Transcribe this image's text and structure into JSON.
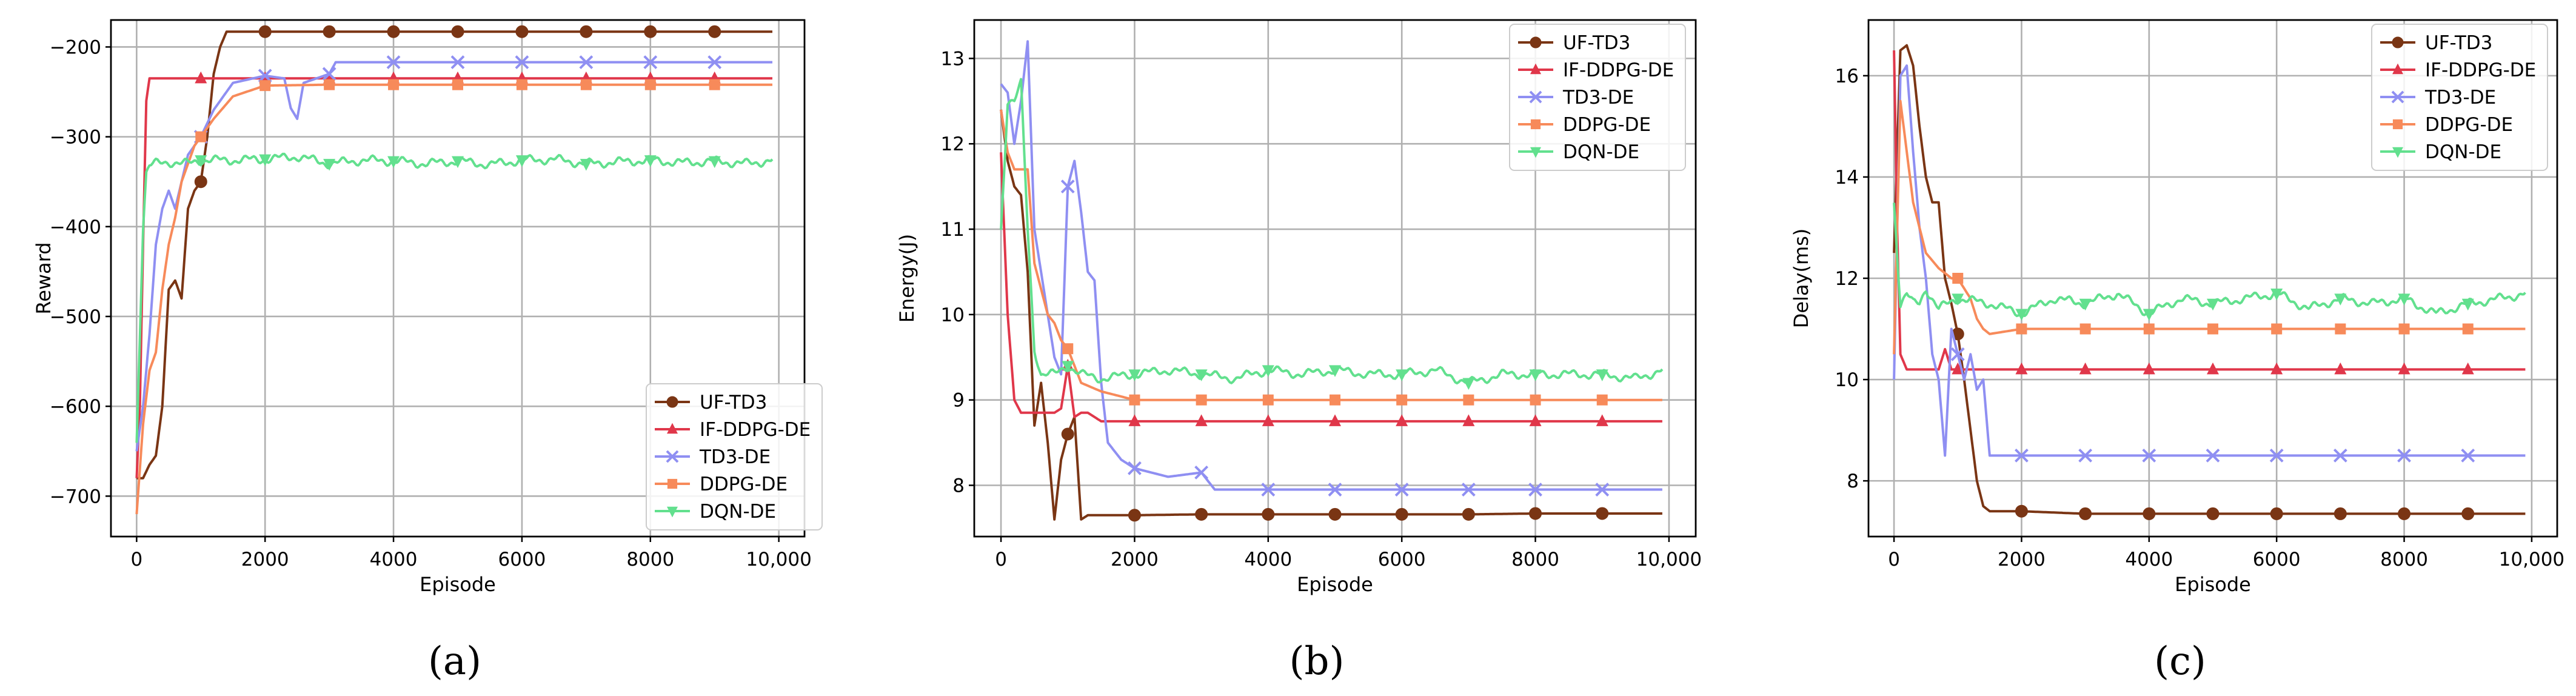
{
  "figure": {
    "captions": [
      "(a)",
      "(b)",
      "(c)"
    ]
  },
  "legend_labels": [
    "UF-TD3",
    "IF-DDPG-DE",
    "TD3-DE",
    "DDPG-DE",
    "DQN-DE"
  ],
  "series_styles": [
    {
      "name": "UF-TD3",
      "color": "#7a3514",
      "marker": "circle"
    },
    {
      "name": "IF-DDPG-DE",
      "color": "#e0374a",
      "marker": "triangle"
    },
    {
      "name": "TD3-DE",
      "color": "#8f8ff2",
      "marker": "x"
    },
    {
      "name": "DDPG-DE",
      "color": "#f78a5a",
      "marker": "square"
    },
    {
      "name": "DQN-DE",
      "color": "#62e08e",
      "marker": "triangle-down"
    }
  ],
  "chart_data": [
    {
      "type": "line",
      "caption": "(a)",
      "xlabel": "Episode",
      "ylabel": "Reward",
      "xlim": [
        -400,
        10400
      ],
      "ylim": [
        -745,
        -170
      ],
      "xticks": [
        0,
        2000,
        4000,
        6000,
        8000,
        10000
      ],
      "xtick_labels": [
        "0",
        "2000",
        "4000",
        "6000",
        "8000",
        "10,000"
      ],
      "yticks": [
        -700,
        -600,
        -500,
        -400,
        -300,
        -200
      ],
      "ytick_labels": [
        "−700",
        "−600",
        "−500",
        "−400",
        "−300",
        "−200"
      ],
      "grid": true,
      "legend_position": "lower-right",
      "series": [
        {
          "name": "UF-TD3",
          "color": "#7a3514",
          "marker": "circle",
          "x": [
            0,
            100,
            200,
            300,
            400,
            500,
            600,
            700,
            800,
            900,
            1000,
            1100,
            1200,
            1300,
            1400,
            2000,
            3000,
            4000,
            5000,
            6000,
            7000,
            8000,
            9000,
            9900
          ],
          "y": [
            -680,
            -680,
            -665,
            -655,
            -600,
            -470,
            -460,
            -480,
            -380,
            -360,
            -350,
            -300,
            -230,
            -200,
            -183,
            -183,
            -183,
            -183,
            -183,
            -183,
            -183,
            -183,
            -183,
            -183
          ]
        },
        {
          "name": "IF-DDPG-DE",
          "color": "#e0374a",
          "marker": "triangle",
          "x": [
            0,
            50,
            100,
            150,
            200,
            300,
            1000,
            2000,
            3000,
            4000,
            5000,
            6000,
            7000,
            8000,
            9000,
            9900
          ],
          "y": [
            -680,
            -600,
            -420,
            -260,
            -235,
            -235,
            -235,
            -235,
            -235,
            -235,
            -235,
            -235,
            -235,
            -235,
            -235,
            -235
          ]
        },
        {
          "name": "TD3-DE",
          "color": "#8f8ff2",
          "marker": "x",
          "x": [
            0,
            100,
            200,
            300,
            400,
            500,
            600,
            700,
            800,
            1000,
            1200,
            1500,
            2000,
            2300,
            2400,
            2500,
            2600,
            3000,
            3100,
            4000,
            5000,
            6000,
            7000,
            8000,
            9000,
            9900
          ],
          "y": [
            -650,
            -600,
            -520,
            -420,
            -380,
            -360,
            -380,
            -350,
            -320,
            -300,
            -270,
            -240,
            -232,
            -235,
            -268,
            -280,
            -240,
            -230,
            -217,
            -217,
            -217,
            -217,
            -217,
            -217,
            -217,
            -217
          ]
        },
        {
          "name": "DDPG-DE",
          "color": "#f78a5a",
          "marker": "square",
          "x": [
            0,
            100,
            200,
            300,
            400,
            500,
            600,
            700,
            800,
            900,
            1000,
            1200,
            1500,
            2000,
            3000,
            4000,
            5000,
            6000,
            7000,
            8000,
            9000,
            9900
          ],
          "y": [
            -720,
            -620,
            -560,
            -540,
            -470,
            -420,
            -390,
            -350,
            -330,
            -310,
            -300,
            -280,
            -255,
            -243,
            -242,
            -242,
            -242,
            -242,
            -242,
            -242,
            -242,
            -242
          ]
        },
        {
          "name": "DQN-DE",
          "color": "#62e08e",
          "marker": "triangle-down",
          "x": [
            0,
            100,
            150,
            200,
            300,
            500,
            800,
            1000,
            1500,
            2000,
            2500,
            3000,
            3500,
            4000,
            4500,
            5000,
            5500,
            6000,
            6500,
            7000,
            7500,
            8000,
            8500,
            9000,
            9500,
            9900
          ],
          "y": [
            -640,
            -400,
            -340,
            -332,
            -330,
            -328,
            -330,
            -326,
            -326,
            -325,
            -322,
            -330,
            -326,
            -327,
            -330,
            -327,
            -331,
            -326,
            -325,
            -330,
            -328,
            -326,
            -329,
            -327,
            -330,
            -326
          ]
        }
      ]
    },
    {
      "type": "line",
      "caption": "(b)",
      "xlabel": "Episode",
      "ylabel": "Energy(J)",
      "xlim": [
        -400,
        10400
      ],
      "ylim": [
        7.4,
        13.45
      ],
      "xticks": [
        0,
        2000,
        4000,
        6000,
        8000,
        10000
      ],
      "xtick_labels": [
        "0",
        "2000",
        "4000",
        "6000",
        "8000",
        "10,000"
      ],
      "yticks": [
        8,
        9,
        10,
        11,
        12,
        13
      ],
      "ytick_labels": [
        "8",
        "9",
        "10",
        "11",
        "12",
        "13"
      ],
      "grid": true,
      "legend_position": "upper-right",
      "series": [
        {
          "name": "UF-TD3",
          "color": "#7a3514",
          "marker": "circle",
          "x": [
            0,
            100,
            200,
            300,
            400,
            500,
            600,
            700,
            800,
            900,
            1000,
            1100,
            1200,
            1300,
            2000,
            3000,
            4000,
            5000,
            6000,
            7000,
            8000,
            9000,
            9900
          ],
          "y": [
            12.4,
            11.8,
            11.5,
            11.4,
            10.5,
            8.7,
            9.2,
            8.5,
            7.6,
            8.3,
            8.6,
            8.8,
            7.6,
            7.65,
            7.65,
            7.66,
            7.66,
            7.66,
            7.66,
            7.66,
            7.67,
            7.67,
            7.67
          ]
        },
        {
          "name": "IF-DDPG-DE",
          "color": "#e0374a",
          "marker": "triangle",
          "x": [
            0,
            100,
            200,
            300,
            500,
            800,
            900,
            1000,
            1100,
            1200,
            1300,
            1500,
            2000,
            3000,
            4000,
            5000,
            6000,
            7000,
            8000,
            9000,
            9900
          ],
          "y": [
            11.9,
            10.0,
            9.0,
            8.85,
            8.85,
            8.85,
            8.9,
            9.4,
            8.8,
            8.85,
            8.85,
            8.75,
            8.75,
            8.75,
            8.75,
            8.75,
            8.75,
            8.75,
            8.75,
            8.75,
            8.75
          ]
        },
        {
          "name": "TD3-DE",
          "color": "#8f8ff2",
          "marker": "x",
          "x": [
            0,
            100,
            200,
            300,
            400,
            500,
            600,
            700,
            800,
            900,
            1000,
            1100,
            1200,
            1300,
            1400,
            1500,
            1600,
            1800,
            2000,
            2500,
            3000,
            3200,
            4000,
            5000,
            6000,
            7000,
            8000,
            9000,
            9900
          ],
          "y": [
            12.7,
            12.6,
            12.0,
            12.5,
            13.2,
            11.0,
            10.5,
            10.0,
            9.5,
            9.3,
            11.5,
            11.8,
            11.2,
            10.5,
            10.4,
            9.2,
            8.5,
            8.3,
            8.2,
            8.1,
            8.15,
            7.95,
            7.95,
            7.95,
            7.95,
            7.95,
            7.95,
            7.95,
            7.95
          ]
        },
        {
          "name": "DDPG-DE",
          "color": "#f78a5a",
          "marker": "square",
          "x": [
            0,
            100,
            200,
            300,
            400,
            500,
            600,
            700,
            800,
            900,
            1000,
            1200,
            1500,
            2000,
            3000,
            4000,
            5000,
            6000,
            7000,
            8000,
            9000,
            9900
          ],
          "y": [
            12.4,
            11.9,
            11.7,
            11.7,
            11.7,
            10.6,
            10.3,
            10.0,
            9.9,
            9.7,
            9.6,
            9.2,
            9.1,
            9.0,
            9.0,
            9.0,
            9.0,
            9.0,
            9.0,
            9.0,
            9.0,
            9.0
          ]
        },
        {
          "name": "DQN-DE",
          "color": "#62e08e",
          "marker": "triangle-down",
          "x": [
            0,
            100,
            200,
            300,
            400,
            500,
            600,
            800,
            1000,
            1200,
            1500,
            2000,
            2500,
            3000,
            3500,
            4000,
            4500,
            5000,
            5500,
            6000,
            6500,
            7000,
            7500,
            8000,
            8500,
            9000,
            9500,
            9900
          ],
          "y": [
            11.0,
            12.5,
            12.5,
            12.7,
            11.0,
            9.6,
            9.3,
            9.3,
            9.4,
            9.3,
            9.25,
            9.3,
            9.35,
            9.3,
            9.25,
            9.35,
            9.3,
            9.35,
            9.3,
            9.3,
            9.35,
            9.2,
            9.3,
            9.3,
            9.3,
            9.3,
            9.25,
            9.35
          ]
        }
      ]
    },
    {
      "type": "line",
      "caption": "(c)",
      "xlabel": "Episode",
      "ylabel": "Delay(ms)",
      "xlim": [
        -400,
        10400
      ],
      "ylim": [
        6.9,
        17.1
      ],
      "xticks": [
        0,
        2000,
        4000,
        6000,
        8000,
        10000
      ],
      "xtick_labels": [
        "0",
        "2000",
        "4000",
        "6000",
        "8000",
        "10,000"
      ],
      "yticks": [
        8,
        10,
        12,
        14,
        16
      ],
      "ytick_labels": [
        "8",
        "10",
        "12",
        "14",
        "16"
      ],
      "grid": true,
      "legend_position": "upper-right",
      "series": [
        {
          "name": "UF-TD3",
          "color": "#7a3514",
          "marker": "circle",
          "x": [
            0,
            100,
            200,
            300,
            400,
            500,
            600,
            700,
            800,
            900,
            1000,
            1100,
            1200,
            1300,
            1400,
            1500,
            2000,
            3000,
            4000,
            5000,
            6000,
            7000,
            8000,
            9000,
            9900
          ],
          "y": [
            12.5,
            16.5,
            16.6,
            16.2,
            15.0,
            14.0,
            13.5,
            13.5,
            12.0,
            11.5,
            10.9,
            10.0,
            9.0,
            8.0,
            7.5,
            7.4,
            7.4,
            7.35,
            7.35,
            7.35,
            7.35,
            7.35,
            7.35,
            7.35,
            7.35
          ]
        },
        {
          "name": "IF-DDPG-DE",
          "color": "#e0374a",
          "marker": "triangle",
          "x": [
            0,
            50,
            100,
            200,
            300,
            500,
            700,
            800,
            900,
            1000,
            1200,
            1500,
            2000,
            3000,
            4000,
            5000,
            6000,
            7000,
            8000,
            9000,
            9900
          ],
          "y": [
            16.5,
            13.0,
            10.5,
            10.2,
            10.2,
            10.2,
            10.2,
            10.6,
            10.2,
            10.2,
            10.2,
            10.2,
            10.2,
            10.2,
            10.2,
            10.2,
            10.2,
            10.2,
            10.2,
            10.2,
            10.2
          ]
        },
        {
          "name": "TD3-DE",
          "color": "#8f8ff2",
          "marker": "x",
          "x": [
            0,
            100,
            200,
            300,
            400,
            500,
            600,
            700,
            800,
            900,
            1000,
            1100,
            1200,
            1300,
            1400,
            1500,
            1600,
            2000,
            3000,
            4000,
            5000,
            6000,
            7000,
            8000,
            9000,
            9900
          ],
          "y": [
            10.0,
            16.0,
            16.2,
            14.5,
            13.0,
            12.0,
            10.5,
            10.0,
            8.5,
            11.0,
            10.5,
            10.0,
            10.5,
            9.8,
            10.0,
            8.5,
            8.5,
            8.5,
            8.5,
            8.5,
            8.5,
            8.5,
            8.5,
            8.5,
            8.5,
            8.5
          ]
        },
        {
          "name": "DDPG-DE",
          "color": "#f78a5a",
          "marker": "square",
          "x": [
            0,
            100,
            200,
            300,
            400,
            500,
            700,
            900,
            1000,
            1100,
            1200,
            1300,
            1400,
            1500,
            2000,
            3000,
            4000,
            5000,
            6000,
            7000,
            8000,
            9000,
            9900
          ],
          "y": [
            10.5,
            15.5,
            14.5,
            13.5,
            13.0,
            12.5,
            12.2,
            12.0,
            12.0,
            11.8,
            11.6,
            11.2,
            11.0,
            10.9,
            11.0,
            11.0,
            11.0,
            11.0,
            11.0,
            11.0,
            11.0,
            11.0,
            11.0
          ]
        },
        {
          "name": "DQN-DE",
          "color": "#62e08e",
          "marker": "triangle-down",
          "x": [
            0,
            100,
            200,
            300,
            400,
            500,
            700,
            1000,
            1500,
            2000,
            2500,
            3000,
            3500,
            4000,
            4500,
            5000,
            5500,
            6000,
            6500,
            7000,
            7500,
            8000,
            8500,
            9000,
            9500,
            9900
          ],
          "y": [
            13.5,
            11.5,
            11.7,
            11.5,
            11.5,
            11.8,
            11.4,
            11.6,
            11.5,
            11.3,
            11.6,
            11.5,
            11.7,
            11.3,
            11.6,
            11.5,
            11.6,
            11.7,
            11.4,
            11.6,
            11.5,
            11.6,
            11.3,
            11.5,
            11.6,
            11.7
          ]
        }
      ]
    }
  ]
}
